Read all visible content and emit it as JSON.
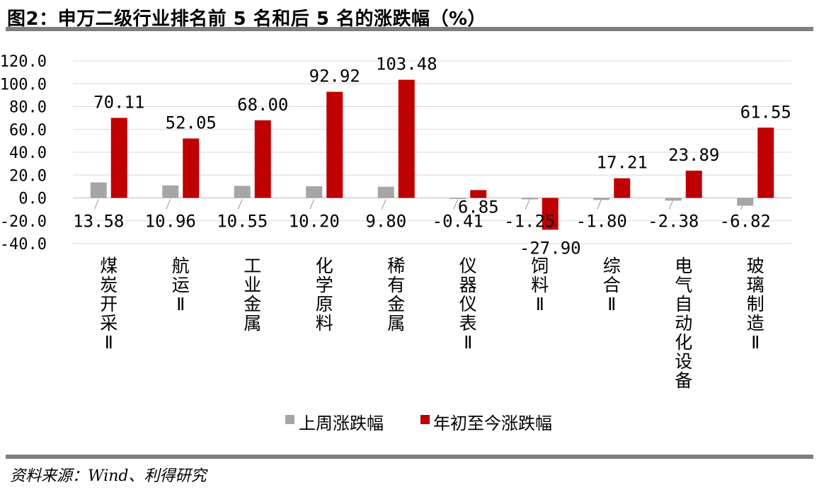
{
  "title": "图2：申万二级行业排名前 5 名和后 5 名的涨跌幅（%）",
  "source": "资料来源：Wind、利得研究",
  "chart_data": {
    "type": "bar",
    "title": "图2：申万二级行业排名前 5 名和后 5 名的涨跌幅（%）",
    "categories": [
      "煤炭开采Ⅱ",
      "航运Ⅱ",
      "工业金属",
      "化学原料",
      "稀有金属",
      "仪器仪表Ⅱ",
      "饲料Ⅱ",
      "综合Ⅱ",
      "电气自动化设备",
      "玻璃制造Ⅱ"
    ],
    "series": [
      {
        "name": "上周涨跌幅",
        "color": "#a6a6a6",
        "values": [
          13.58,
          10.96,
          10.55,
          10.2,
          9.8,
          -0.41,
          -1.25,
          -1.8,
          -2.38,
          -6.82
        ],
        "labels": [
          "13.58",
          "10.96",
          "10.55",
          "10.20",
          "9.80",
          "-0.41",
          "-1.25",
          "-1.80",
          "-2.38",
          "-6.82"
        ]
      },
      {
        "name": "年初至今涨跌幅",
        "color": "#c00000",
        "values": [
          70.11,
          52.05,
          68.0,
          92.92,
          103.48,
          6.85,
          -27.9,
          17.21,
          23.89,
          61.55
        ],
        "labels": [
          "70.11",
          "52.05",
          "68.00",
          "92.92",
          "103.48",
          "6.85",
          "-27.90",
          "17.21",
          "23.89",
          "61.55"
        ]
      }
    ],
    "ylim": [
      -40,
      120
    ],
    "yticks": [
      "120.0",
      "100.0",
      "80.0",
      "60.0",
      "40.0",
      "20.0",
      "0.0",
      "-20.0",
      "-40.0"
    ],
    "ytick_values": [
      120,
      100,
      80,
      60,
      40,
      20,
      0,
      -20,
      -40
    ],
    "grid": true,
    "legend_position": "bottom"
  }
}
